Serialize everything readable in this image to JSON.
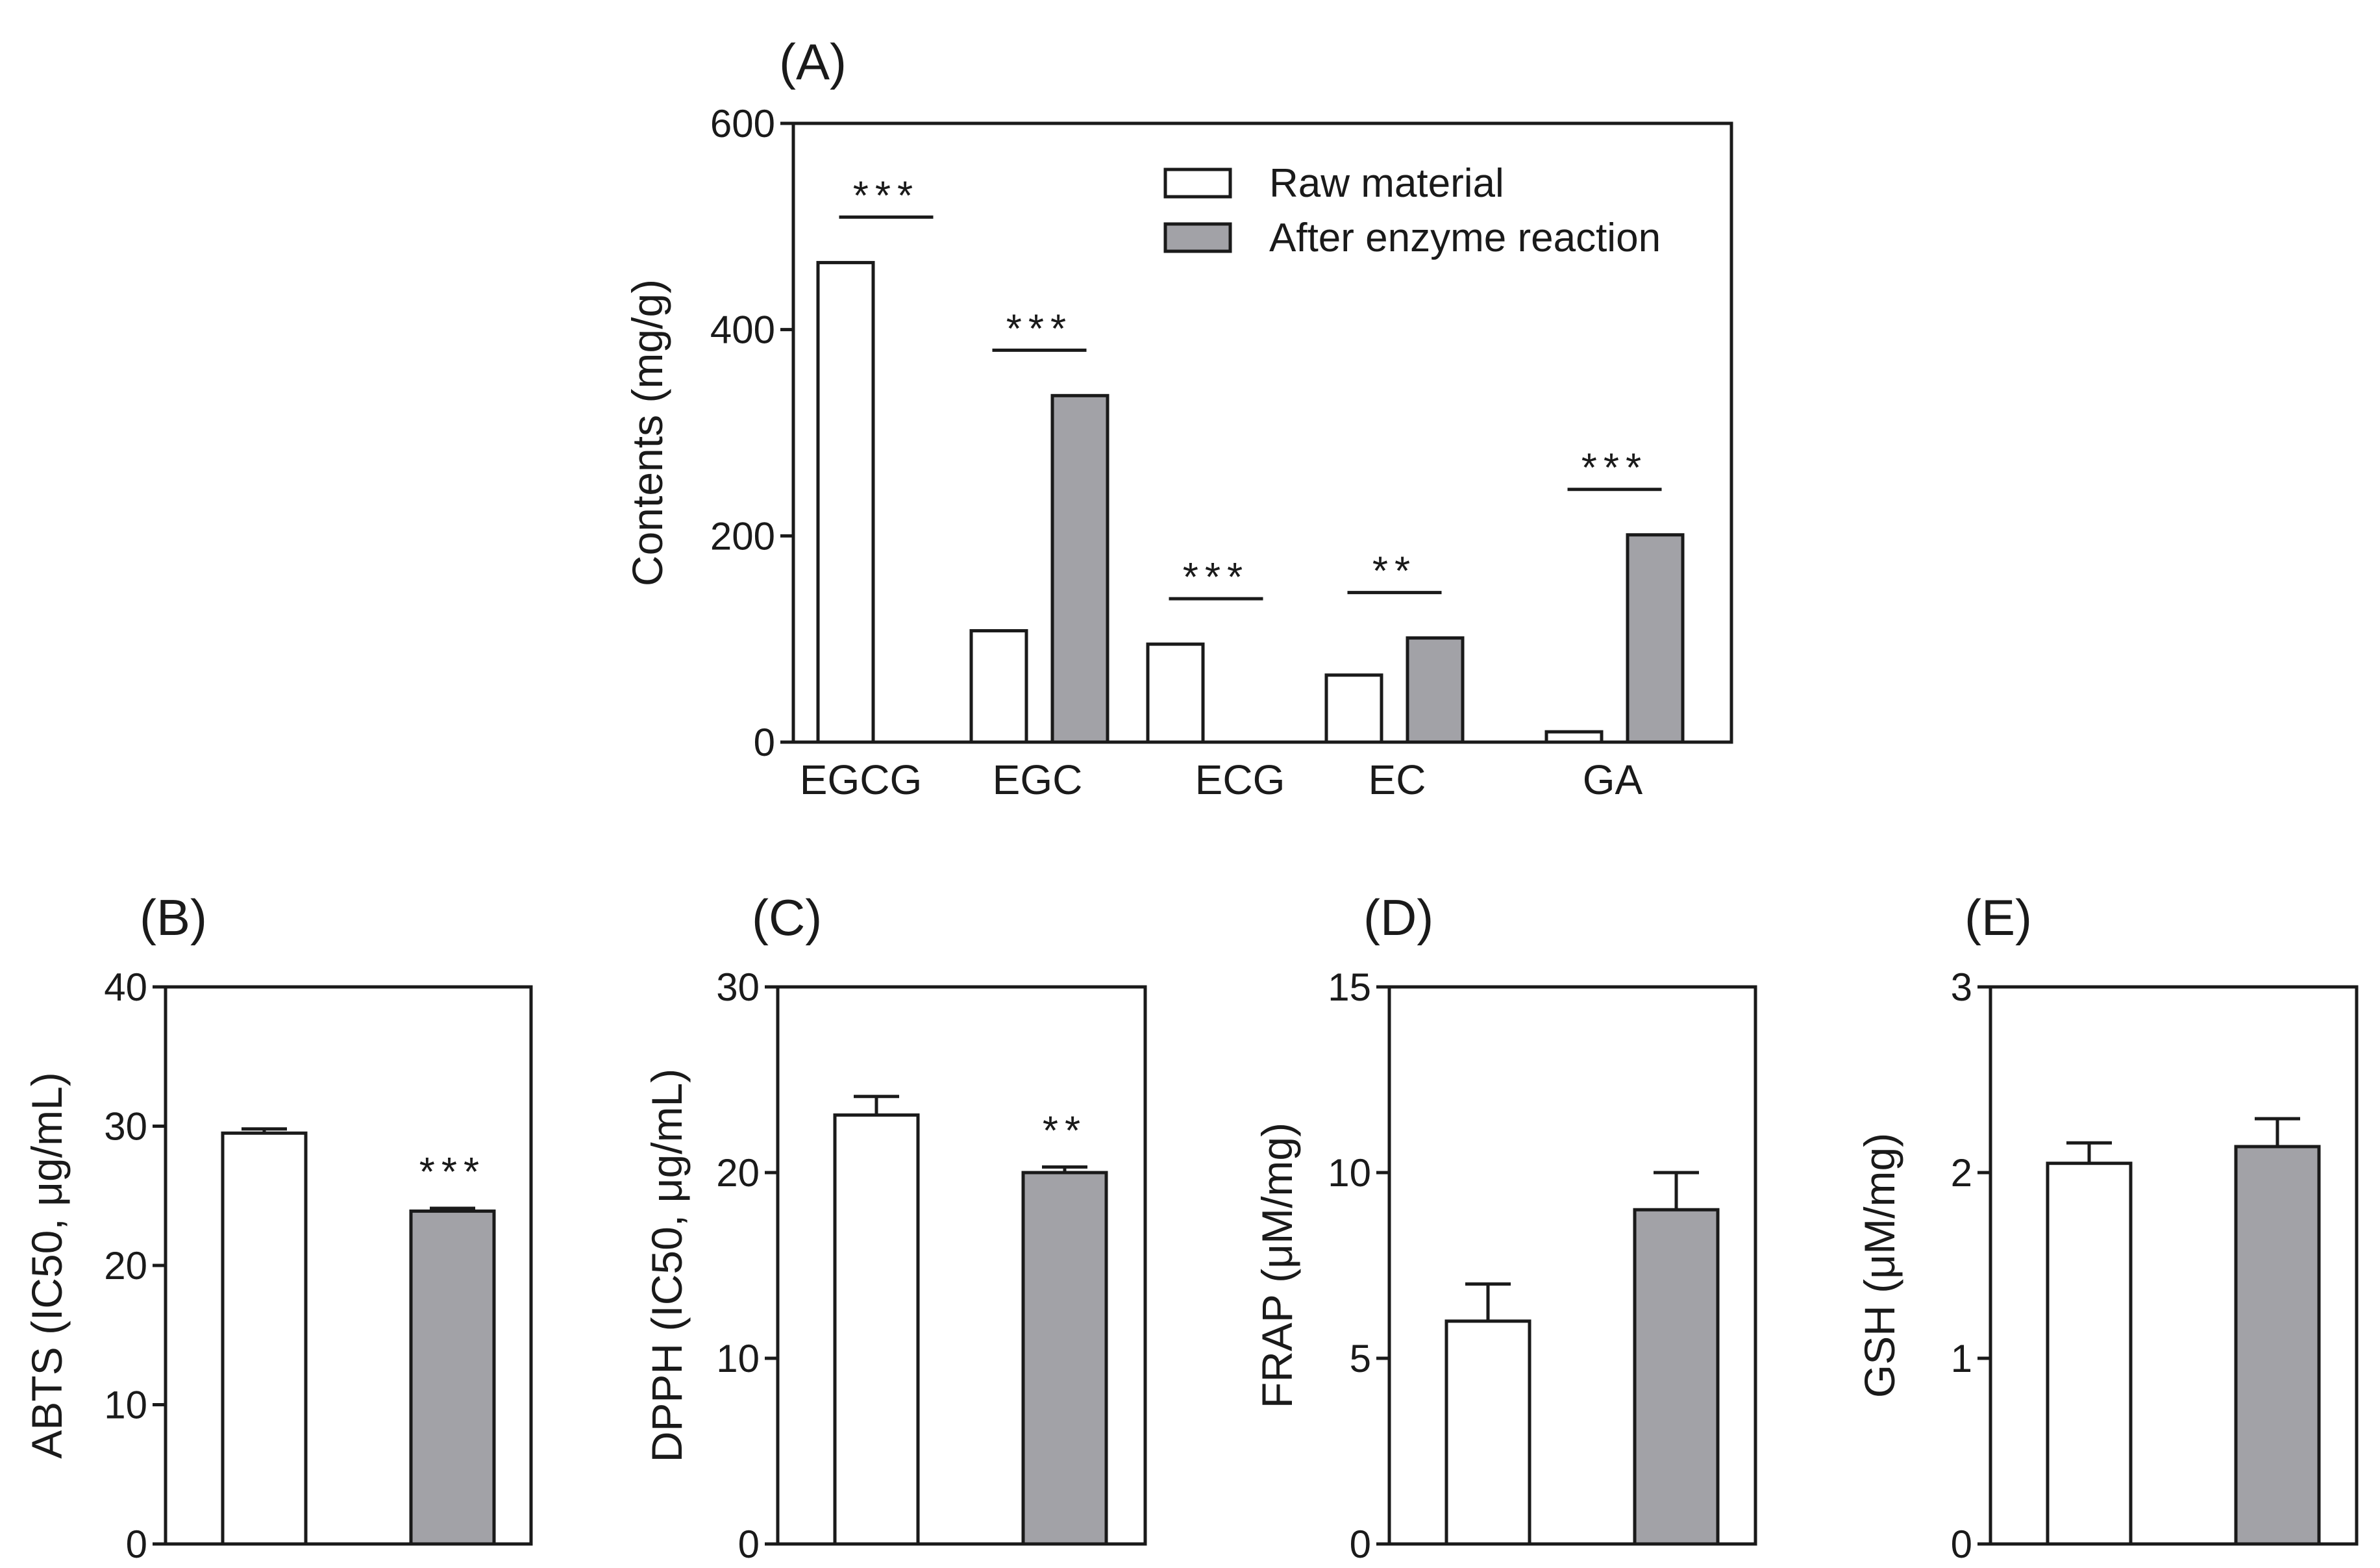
{
  "colors": {
    "raw_material": "#ffffff",
    "after_enzyme": "#a2a2a7",
    "axis": "#1a1a1a"
  },
  "legend": {
    "entries": [
      "Raw material",
      "After enzyme reaction"
    ]
  },
  "chart_data": [
    {
      "panel": "(A)",
      "type": "bar",
      "ylabel": "Contents (mg/g)",
      "ylim": [
        0,
        600
      ],
      "yticks": [
        "0",
        "200",
        "400",
        "600"
      ],
      "categories": [
        "EGCG",
        "EGC",
        "ECG",
        "EC",
        "GA"
      ],
      "series": [
        {
          "name": "Raw material",
          "values": [
            465,
            108,
            95,
            65,
            10
          ],
          "errors": [
            0,
            0,
            0,
            0,
            0
          ]
        },
        {
          "name": "After enzyme reaction",
          "values": [
            0,
            336,
            0,
            101,
            201
          ],
          "errors": [
            0,
            0,
            0,
            0,
            0
          ]
        }
      ],
      "significance": [
        "***",
        "***",
        "***",
        "**",
        "***"
      ],
      "legend_position": "top-right"
    },
    {
      "panel": "(B)",
      "type": "bar",
      "ylabel": "ABTS (IC50, μg/mL)",
      "ylim": [
        0,
        40
      ],
      "yticks": [
        "0",
        "10",
        "20",
        "30",
        "40"
      ],
      "series": [
        {
          "name": "Raw material",
          "value": 29.5,
          "error": 0.3
        },
        {
          "name": "After enzyme reaction",
          "value": 23.9,
          "error": 0.2
        }
      ],
      "significance": "***"
    },
    {
      "panel": "(C)",
      "type": "bar",
      "ylabel": "DPPH (IC50, μg/mL)",
      "ylim": [
        0,
        30
      ],
      "yticks": [
        "0",
        "10",
        "20",
        "30"
      ],
      "series": [
        {
          "name": "Raw material",
          "value": 23.1,
          "error": 1.0
        },
        {
          "name": "After enzyme reaction",
          "value": 20.0,
          "error": 0.3
        }
      ],
      "significance": "**"
    },
    {
      "panel": "(D)",
      "type": "bar",
      "ylabel": "FRAP (μM/mg)",
      "ylim": [
        0,
        15
      ],
      "yticks": [
        "0",
        "5",
        "10",
        "15"
      ],
      "series": [
        {
          "name": "Raw material",
          "value": 6.0,
          "error": 1.0
        },
        {
          "name": "After enzyme reaction",
          "value": 9.0,
          "error": 1.0
        }
      ],
      "significance": ""
    },
    {
      "panel": "(E)",
      "type": "bar",
      "ylabel": "GSH (μM/mg)",
      "ylim": [
        0,
        3
      ],
      "yticks": [
        "0",
        "1",
        "2",
        "3"
      ],
      "series": [
        {
          "name": "Raw material",
          "value": 2.05,
          "error": 0.11
        },
        {
          "name": "After enzyme reaction",
          "value": 2.14,
          "error": 0.15
        }
      ],
      "significance": ""
    }
  ]
}
